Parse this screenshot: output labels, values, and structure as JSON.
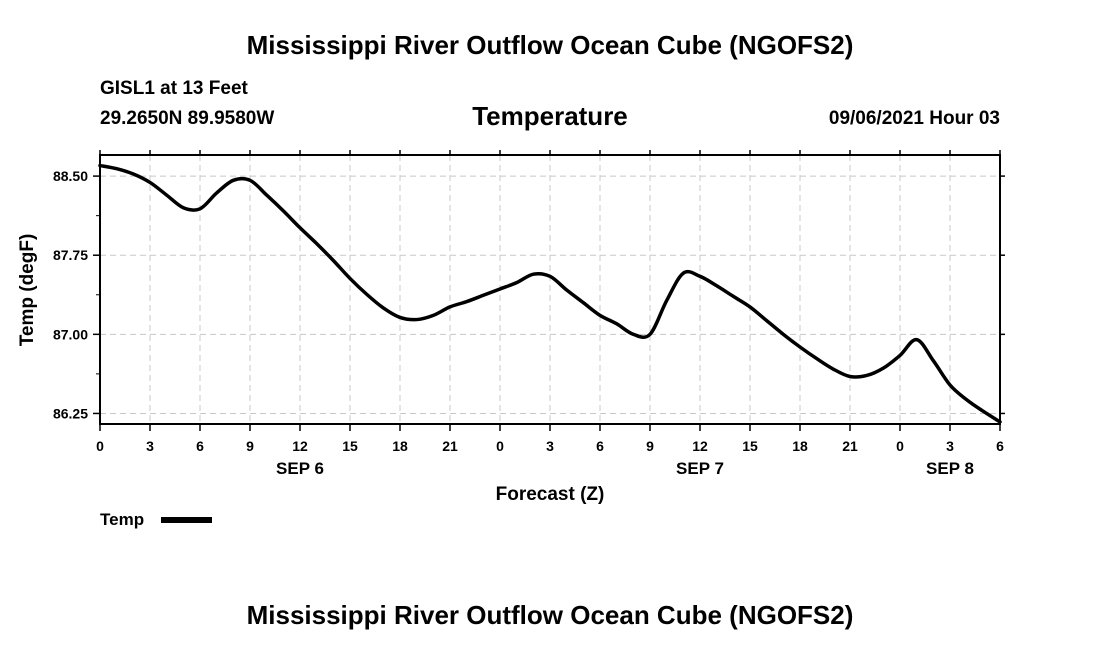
{
  "chart_data": {
    "type": "line",
    "title": "Mississippi River Outflow Ocean Cube (NGOFS2)",
    "footer_title": "Mississippi River Outflow Ocean Cube (NGOFS2)",
    "station": "GISL1 at 13 Feet",
    "location": "29.2650N  89.9580W",
    "variable_title": "Temperature",
    "datetime": "09/06/2021 Hour 03",
    "xlabel": "Forecast (Z)",
    "ylabel": "Temp (degF)",
    "x_ticks": [
      "0",
      "3",
      "6",
      "9",
      "12",
      "15",
      "18",
      "21",
      "0",
      "3",
      "6",
      "9",
      "12",
      "15",
      "18",
      "21",
      "0",
      "3",
      "6"
    ],
    "date_labels": [
      {
        "label": "SEP 6",
        "hour": 12
      },
      {
        "label": "SEP 7",
        "hour": 36
      },
      {
        "label": "SEP 8",
        "hour": 51
      }
    ],
    "xlim": [
      0,
      54
    ],
    "ylim": [
      86.15,
      88.7
    ],
    "y_ticks": [
      "86.25",
      "87.00",
      "87.75",
      "88.50"
    ],
    "grid": true,
    "legend": [
      {
        "name": "Temp",
        "color": "#000000"
      }
    ],
    "series": [
      {
        "name": "Temp",
        "color": "#000000",
        "x": [
          0,
          1,
          2,
          3,
          4,
          5,
          6,
          7,
          8,
          9,
          10,
          11,
          12,
          13,
          14,
          15,
          16,
          17,
          18,
          19,
          20,
          21,
          22,
          23,
          24,
          25,
          26,
          27,
          28,
          29,
          30,
          31,
          32,
          33,
          34,
          35,
          36,
          37,
          38,
          39,
          40,
          41,
          42,
          43,
          44,
          45,
          46,
          47,
          48,
          49,
          50,
          51,
          52,
          53,
          54
        ],
        "y": [
          88.6,
          88.57,
          88.52,
          88.44,
          88.32,
          88.2,
          88.19,
          88.34,
          88.46,
          88.46,
          88.32,
          88.17,
          88.01,
          87.86,
          87.7,
          87.53,
          87.38,
          87.25,
          87.16,
          87.14,
          87.18,
          87.26,
          87.31,
          87.37,
          87.43,
          87.49,
          87.57,
          87.55,
          87.42,
          87.3,
          87.18,
          87.1,
          87.0,
          87.0,
          87.32,
          87.58,
          87.55,
          87.46,
          87.36,
          87.26,
          87.13,
          87.0,
          86.88,
          86.77,
          86.67,
          86.6,
          86.61,
          86.68,
          86.8,
          86.95,
          86.75,
          86.52,
          86.38,
          86.27,
          86.17
        ]
      }
    ]
  }
}
